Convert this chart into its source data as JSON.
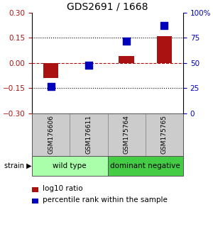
{
  "title": "GDS2691 / 1668",
  "samples": [
    "GSM176606",
    "GSM176611",
    "GSM175764",
    "GSM175765"
  ],
  "log10_ratio": [
    -0.09,
    0.0,
    0.04,
    0.16
  ],
  "percentile_rank": [
    27,
    48,
    72,
    87
  ],
  "ylim_left": [
    -0.3,
    0.3
  ],
  "ylim_right": [
    0,
    100
  ],
  "yticks_left": [
    -0.3,
    -0.15,
    0,
    0.15,
    0.3
  ],
  "yticks_right": [
    0,
    25,
    50,
    75,
    100
  ],
  "hlines_dotted": [
    -0.15,
    0.15
  ],
  "hline_dashed": 0,
  "bar_color": "#aa1111",
  "dot_color": "#0000bb",
  "bar_width": 0.4,
  "dot_size": 45,
  "groups": [
    {
      "label": "wild type",
      "samples": [
        0,
        1
      ],
      "color": "#aaffaa"
    },
    {
      "label": "dominant negative",
      "samples": [
        2,
        3
      ],
      "color": "#44cc44"
    }
  ],
  "strain_label": "strain",
  "legend_bar_label": "log10 ratio",
  "legend_dot_label": "percentile rank within the sample",
  "title_fontsize": 10,
  "tick_fontsize": 7.5,
  "sample_fontsize": 6.5,
  "group_fontsize": 7.5,
  "legend_fontsize": 7.5
}
